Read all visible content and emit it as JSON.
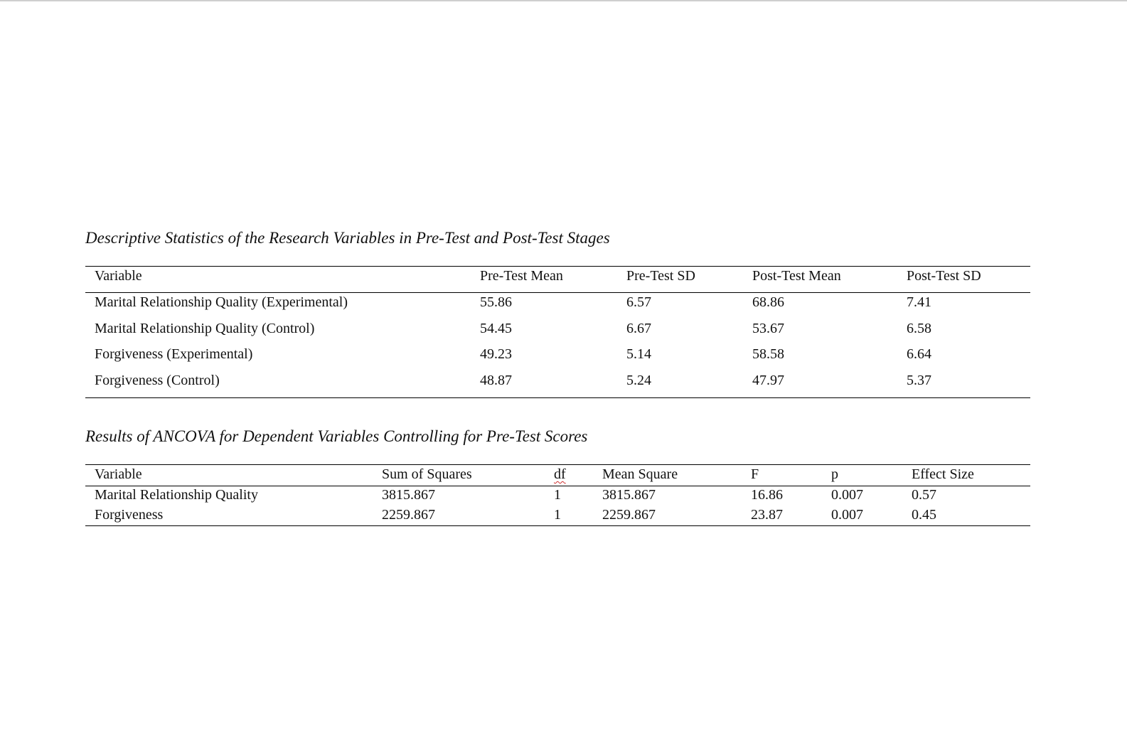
{
  "tables": [
    {
      "caption": "Descriptive Statistics of the Research Variables in Pre-Test and Post-Test Stages",
      "header": [
        "Variable",
        "Pre-Test Mean",
        "Pre-Test SD",
        "Post-Test Mean",
        "Post-Test SD"
      ],
      "rows": [
        [
          "Marital Relationship Quality (Experimental)",
          "55.86",
          "6.57",
          "68.86",
          "7.41"
        ],
        [
          "Marital Relationship Quality (Control)",
          "54.45",
          "6.67",
          "53.67",
          "6.58"
        ],
        [
          "Forgiveness (Experimental)",
          "49.23",
          "5.14",
          "58.58",
          "6.64"
        ],
        [
          "Forgiveness (Control)",
          "48.87",
          "5.24",
          "47.97",
          "5.37"
        ]
      ]
    },
    {
      "caption": "Results of ANCOVA for Dependent Variables Controlling for Pre-Test Scores",
      "header": [
        "Variable",
        "Sum of Squares",
        "df",
        "Mean Square",
        "F",
        "p",
        "Effect Size"
      ],
      "rows": [
        [
          "Marital Relationship Quality",
          "3815.867",
          "1",
          "3815.867",
          "16.86",
          "0.007",
          "0.57"
        ],
        [
          "Forgiveness",
          "2259.867",
          "1",
          "2259.867",
          "23.87",
          "0.007",
          "0.45"
        ]
      ]
    }
  ]
}
